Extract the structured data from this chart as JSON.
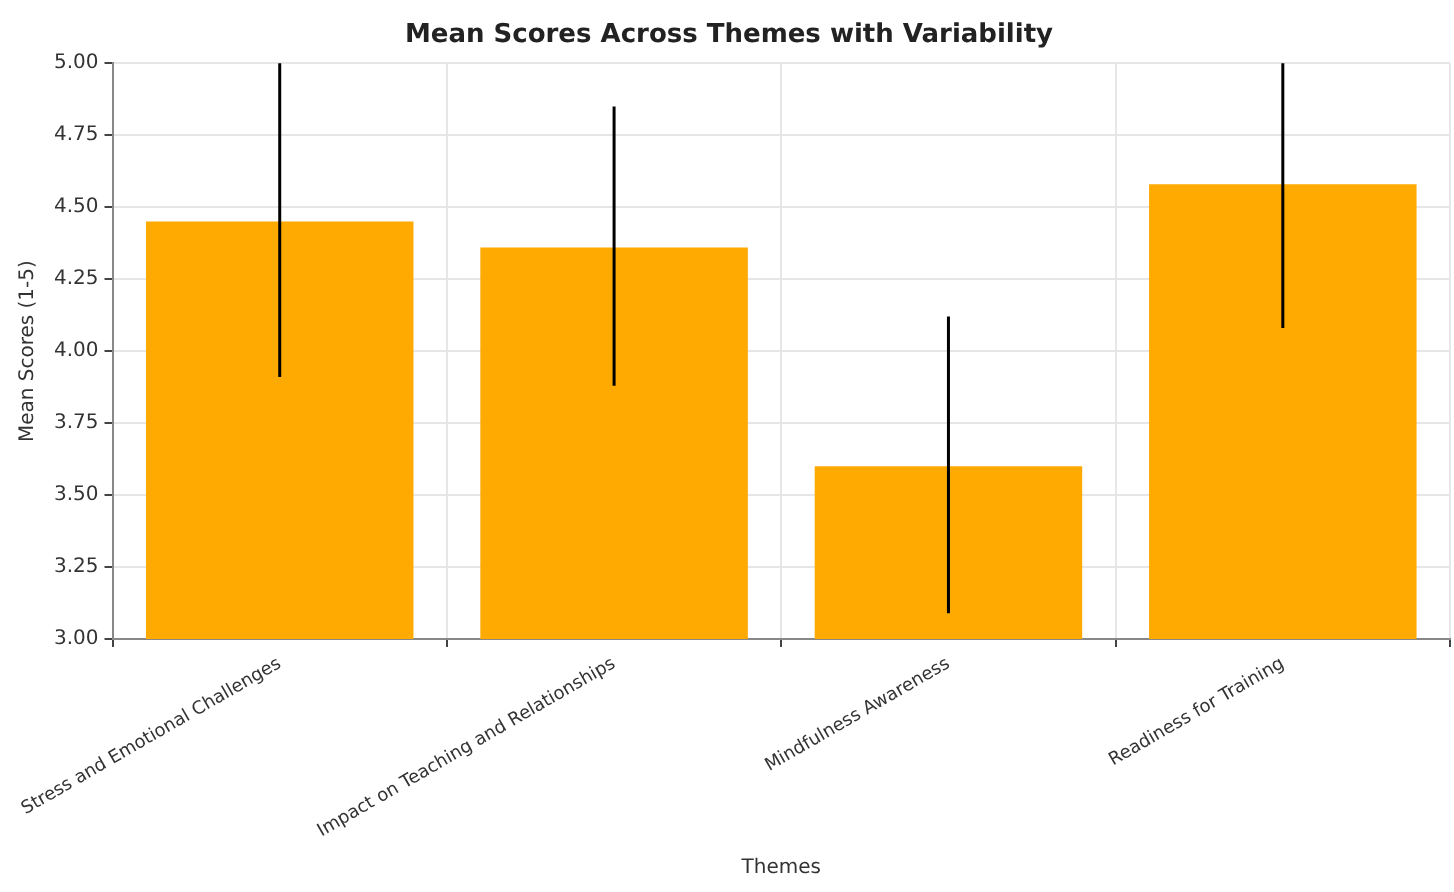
{
  "chart_data": {
    "type": "bar",
    "title": "Mean Scores Across Themes with Variability",
    "xlabel": "Themes",
    "ylabel": "Mean Scores (1-5)",
    "categories": [
      "Stress and Emotional Challenges",
      "Impact on Teaching and Relationships",
      "Mindfulness Awareness",
      "Readiness for Training"
    ],
    "values": [
      4.45,
      4.36,
      3.6,
      4.58
    ],
    "color": "#ffaa00",
    "errors": [
      [
        3.91,
        5.0
      ],
      [
        3.88,
        4.85
      ],
      [
        3.09,
        4.12
      ],
      [
        4.08,
        5.0
      ]
    ],
    "ylim": [
      3.0,
      5.0
    ],
    "yticks": [
      {
        "value": 3.0,
        "label": "3.00"
      },
      {
        "value": 3.25,
        "label": "3.25"
      },
      {
        "value": 3.5,
        "label": "3.50"
      },
      {
        "value": 3.75,
        "label": "3.75"
      },
      {
        "value": 4.0,
        "label": "4.00"
      },
      {
        "value": 4.25,
        "label": "4.25"
      },
      {
        "value": 4.5,
        "label": "4.50"
      },
      {
        "value": 4.75,
        "label": "4.75"
      },
      {
        "value": 5.0,
        "label": "5.00"
      }
    ],
    "grid": true,
    "legend": false
  }
}
